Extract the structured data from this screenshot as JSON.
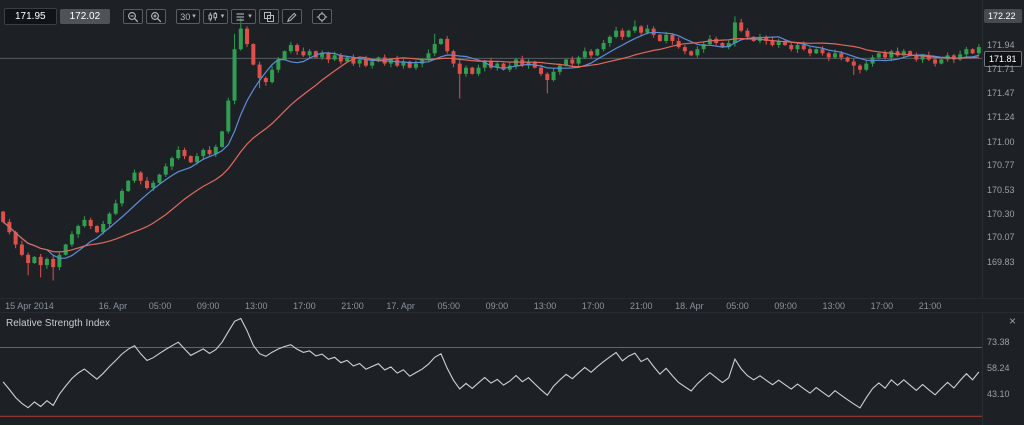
{
  "quote_panel": {
    "sell": "171.95",
    "buy": "172.02"
  },
  "toolbar": {
    "interval_label": "30",
    "caret_glyph": "▾",
    "buttons": [
      "zoom-out",
      "zoom-in",
      "interval",
      "chart-type",
      "indicators",
      "compare",
      "annotate",
      "draw-cursor"
    ]
  },
  "price_axis": {
    "high_badge": "172.22",
    "current_badge": "171.81",
    "ticks": [
      "171.94",
      "171.71",
      "171.47",
      "171.24",
      "171.00",
      "170.77",
      "170.53",
      "170.30",
      "170.07",
      "169.83"
    ]
  },
  "time_axis": {
    "labels": [
      {
        "text": "15 Apr 2014",
        "xf": 0.03
      },
      {
        "text": "16. Apr",
        "xf": 0.115
      },
      {
        "text": "05:00",
        "xf": 0.163
      },
      {
        "text": "09:00",
        "xf": 0.212
      },
      {
        "text": "13:00",
        "xf": 0.261
      },
      {
        "text": "17:00",
        "xf": 0.31
      },
      {
        "text": "21:00",
        "xf": 0.359
      },
      {
        "text": "17. Apr",
        "xf": 0.408
      },
      {
        "text": "05:00",
        "xf": 0.457
      },
      {
        "text": "09:00",
        "xf": 0.506
      },
      {
        "text": "13:00",
        "xf": 0.555
      },
      {
        "text": "17:00",
        "xf": 0.604
      },
      {
        "text": "21:00",
        "xf": 0.653
      },
      {
        "text": "18. Apr",
        "xf": 0.702
      },
      {
        "text": "05:00",
        "xf": 0.751
      },
      {
        "text": "09:00",
        "xf": 0.8
      },
      {
        "text": "13:00",
        "xf": 0.849
      },
      {
        "text": "17:00",
        "xf": 0.898
      },
      {
        "text": "21:00",
        "xf": 0.947
      }
    ]
  },
  "rsi_panel": {
    "title": "Relative Strength Index",
    "close_glyph": "×",
    "ticks": [
      "73.38",
      "58.24",
      "43.10"
    ]
  },
  "colors": {
    "background": "#1d2126",
    "up": "#2f9e4f",
    "down": "#e0504a",
    "ma_fast": "#5b8fd9",
    "ma_slow": "#e0685e",
    "rsi_line": "#ccd1d6",
    "overbought": "#3f7d4a",
    "oversold": "#8f3631",
    "axis_text": "#99a1a9",
    "current_line": "#565b61"
  },
  "chart_data": {
    "type": "candlestick",
    "interval_minutes": 30,
    "quotes": {
      "sell": 171.95,
      "buy": 172.02
    },
    "session_high": 172.22,
    "current_price": 171.81,
    "price_range": {
      "min": 169.48,
      "max": 172.32
    },
    "first_open": 170.32,
    "closes": [
      170.22,
      170.12,
      170.0,
      169.9,
      169.82,
      169.88,
      169.8,
      169.86,
      169.78,
      169.9,
      170.0,
      170.1,
      170.18,
      170.24,
      170.18,
      170.12,
      170.2,
      170.3,
      170.4,
      170.52,
      170.62,
      170.7,
      170.62,
      170.55,
      170.6,
      170.68,
      170.76,
      170.84,
      170.92,
      170.86,
      170.8,
      170.86,
      170.92,
      170.88,
      170.95,
      171.1,
      171.4,
      171.9,
      172.1,
      171.95,
      171.75,
      171.62,
      171.58,
      171.7,
      171.8,
      171.88,
      171.94,
      171.88,
      171.84,
      171.88,
      171.82,
      171.86,
      171.8,
      171.84,
      171.78,
      171.82,
      171.76,
      171.8,
      171.74,
      171.78,
      171.82,
      171.76,
      171.8,
      171.74,
      171.78,
      171.72,
      171.76,
      171.8,
      171.86,
      171.95,
      172.0,
      171.88,
      171.76,
      171.66,
      171.72,
      171.66,
      171.72,
      171.78,
      171.72,
      171.76,
      171.7,
      171.74,
      171.8,
      171.74,
      171.78,
      171.72,
      171.66,
      171.6,
      171.68,
      171.74,
      171.8,
      171.76,
      171.82,
      171.88,
      171.84,
      171.9,
      171.96,
      172.02,
      172.08,
      172.02,
      172.08,
      172.12,
      172.06,
      172.1,
      172.04,
      171.98,
      172.04,
      171.98,
      171.92,
      171.88,
      171.84,
      171.9,
      171.95,
      172.0,
      171.96,
      171.92,
      171.96,
      172.16,
      172.08,
      172.02,
      171.98,
      172.02,
      171.98,
      171.94,
      171.98,
      171.94,
      171.9,
      171.94,
      171.9,
      171.86,
      171.9,
      171.86,
      171.82,
      171.86,
      171.82,
      171.78,
      171.74,
      171.7,
      171.76,
      171.82,
      171.86,
      171.82,
      171.88,
      171.84,
      171.88,
      171.84,
      171.8,
      171.84,
      171.8,
      171.76,
      171.8,
      171.84,
      171.8,
      171.85,
      171.9,
      171.86,
      171.92
    ],
    "wick_overrides": {
      "4": {
        "l": 169.7
      },
      "6": {
        "l": 169.68
      },
      "8": {
        "l": 169.65
      },
      "37": {
        "h": 172.05
      },
      "38": {
        "h": 172.2
      },
      "41": {
        "l": 171.52
      },
      "69": {
        "h": 172.05
      },
      "73": {
        "l": 171.42
      },
      "87": {
        "l": 171.47
      },
      "101": {
        "h": 172.18
      },
      "117": {
        "h": 172.22
      },
      "136": {
        "l": 171.65
      }
    },
    "overlays": [
      {
        "name": "moving-average-fast",
        "period": 8,
        "color": "#5b8fd9"
      },
      {
        "name": "moving-average-slow",
        "period": 21,
        "color": "#e0685e"
      }
    ],
    "indicator": {
      "name": "Relative Strength Index",
      "type": "rsi",
      "period": 14,
      "overbought": 70,
      "oversold": 30,
      "range": {
        "min": 25,
        "max": 90
      },
      "ticks": [
        73.38,
        58.24,
        43.1
      ]
    }
  }
}
